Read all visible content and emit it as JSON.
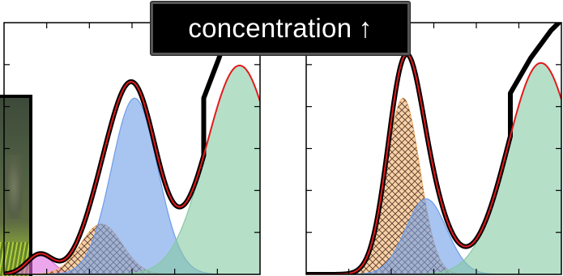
{
  "label": {
    "text": "concentration",
    "arrow": "↑"
  },
  "colors": {
    "data_curve": "#000000",
    "fit_curve": "#e31a1c",
    "blue_peak": "#6e9de8",
    "orange_peak": "#f4b46e",
    "green_peak": "#86c9a3",
    "magenta_peak": "#e06ae0",
    "hatch": "#5a3a2a"
  },
  "chart_data": [
    {
      "type": "area",
      "xlim": [
        0,
        100
      ],
      "ylim": [
        0,
        100
      ],
      "grid": false,
      "components": [
        {
          "color": "magenta",
          "center": 14,
          "height": 8,
          "width": 5,
          "hatched": false
        },
        {
          "color": "orange",
          "center": 38,
          "height": 20,
          "width": 8,
          "hatched": true
        },
        {
          "color": "blue",
          "center": 51,
          "height": 70,
          "width": 9,
          "hatched": false
        },
        {
          "color": "green",
          "center": 92,
          "height": 83,
          "width": 13,
          "hatched": false
        }
      ],
      "fit_tail_drop": 0,
      "data_tail": [
        {
          "x": 78,
          "y": 70
        },
        {
          "x": 84,
          "y": 86
        },
        {
          "x": 90,
          "y": 104
        }
      ]
    },
    {
      "type": "area",
      "xlim": [
        0,
        100
      ],
      "ylim": [
        0,
        100
      ],
      "grid": false,
      "components": [
        {
          "color": "orange",
          "center": 38,
          "height": 70,
          "width": 6.5,
          "hatched": true
        },
        {
          "color": "blue",
          "center": 47,
          "height": 30,
          "width": 8,
          "hatched": false
        },
        {
          "color": "green",
          "center": 92,
          "height": 84,
          "width": 13,
          "hatched": false
        }
      ],
      "data_tail": [
        {
          "x": 80,
          "y": 72
        },
        {
          "x": 88,
          "y": 86
        },
        {
          "x": 96,
          "y": 97
        },
        {
          "x": 100,
          "y": 101
        }
      ]
    }
  ]
}
